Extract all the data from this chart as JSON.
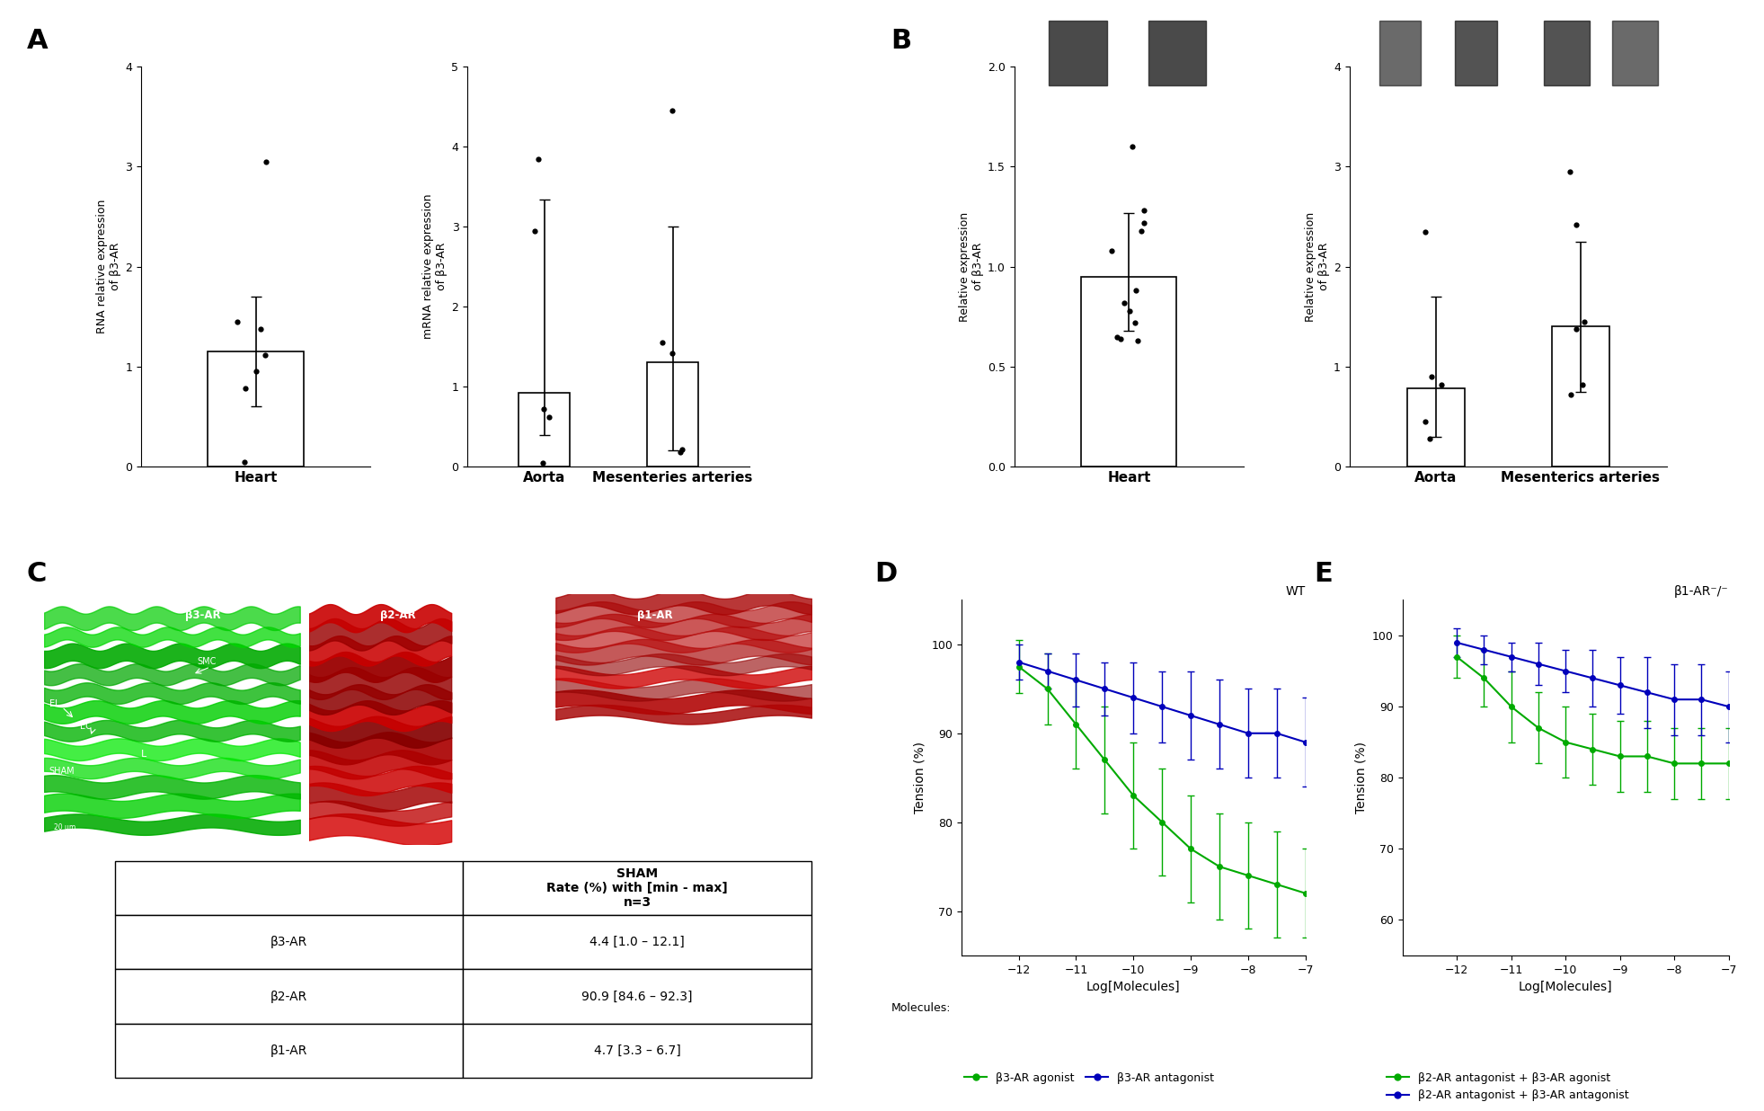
{
  "panel_A": {
    "heart_bar": 1.15,
    "heart_err": 0.55,
    "heart_points": [
      3.05,
      1.45,
      1.38,
      1.12,
      0.95,
      0.78,
      0.05
    ],
    "heart_ylim": [
      0,
      4
    ],
    "heart_yticks": [
      0,
      1,
      2,
      3,
      4
    ],
    "heart_xlabel": "Heart",
    "heart_ylabel": "RNA relative expression\nof β3-AR",
    "aorta_bar": 0.92,
    "aorta_err_low": 0.52,
    "aorta_err_high": 2.42,
    "aorta_points": [
      3.85,
      2.95,
      0.72,
      0.62,
      0.05
    ],
    "mes_bar": 1.3,
    "mes_err_low": 1.1,
    "mes_err_high": 1.7,
    "mes_points": [
      4.45,
      1.55,
      1.42,
      0.22,
      0.18
    ],
    "vascular_ylim": [
      0,
      5
    ],
    "vascular_yticks": [
      0,
      1,
      2,
      3,
      4,
      5
    ],
    "vascular_ylabel": "mRNA relative expression\nof β3-AR",
    "aorta_xlabel": "Aorta",
    "mes_xlabel": "Mesenteries arteries"
  },
  "panel_B": {
    "heart_bar": 0.95,
    "heart_err_low": 0.27,
    "heart_err_high": 0.32,
    "heart_points": [
      1.6,
      1.28,
      1.22,
      1.18,
      1.08,
      0.88,
      0.82,
      0.78,
      0.72,
      0.65,
      0.64,
      0.63
    ],
    "heart_ylim": [
      0.0,
      2.0
    ],
    "heart_yticks": [
      0.0,
      0.5,
      1.0,
      1.5,
      2.0
    ],
    "heart_xlabel": "Heart",
    "heart_ylabel": "Relative expression\nof β3-AR",
    "aorta_bar": 0.78,
    "aorta_err_low": 0.48,
    "aorta_err_high": 0.92,
    "aorta_points": [
      2.35,
      0.9,
      0.82,
      0.45,
      0.28
    ],
    "mes_bar": 1.4,
    "mes_err_low": 0.65,
    "mes_err_high": 0.85,
    "mes_points": [
      2.95,
      2.42,
      1.45,
      1.38,
      0.82,
      0.72
    ],
    "vascular_ylim": [
      0,
      4
    ],
    "vascular_yticks": [
      0,
      1,
      2,
      3,
      4
    ],
    "vascular_ylabel": "Relative expression\nof β3-AR",
    "aorta_xlabel": "Aorta",
    "mes_xlabel": "Mesenterics arteries"
  },
  "panel_C": {
    "table_data": [
      [
        "β3-AR",
        "4.4 [1.0 – 12.1]"
      ],
      [
        "β2-AR",
        "90.9 [84.6 – 92.3]"
      ],
      [
        "β1-AR",
        "4.7 [3.3 – 6.7]"
      ]
    ],
    "header": "SHAM\nRate (%) with [min - max]\nn=3"
  },
  "panel_D": {
    "title": "WT",
    "xlabel": "Log[Molecules]",
    "ylabel": "Tension (%)",
    "xlim": [
      -13,
      -7
    ],
    "ylim": [
      65,
      105
    ],
    "xticks": [
      -12,
      -11,
      -10,
      -9,
      -8,
      -7
    ],
    "yticks": [
      70,
      80,
      90,
      100
    ],
    "agonist_x": [
      -12,
      -11.5,
      -11,
      -10.5,
      -10,
      -9.5,
      -9,
      -8.5,
      -8,
      -7.5,
      -7
    ],
    "agonist_y": [
      97.5,
      95,
      91,
      87,
      83,
      80,
      77,
      75,
      74,
      73,
      72
    ],
    "agonist_err": [
      3,
      4,
      5,
      6,
      6,
      6,
      6,
      6,
      6,
      6,
      5
    ],
    "antagonist_x": [
      -12,
      -11.5,
      -11,
      -10.5,
      -10,
      -9.5,
      -9,
      -8.5,
      -8,
      -7.5,
      -7
    ],
    "antagonist_y": [
      98,
      97,
      96,
      95,
      94,
      93,
      92,
      91,
      90,
      90,
      89
    ],
    "antagonist_err": [
      2,
      2,
      3,
      3,
      4,
      4,
      5,
      5,
      5,
      5,
      5
    ],
    "agonist_color": "#00aa00",
    "antagonist_color": "#0000bb",
    "legend_agonist": "β3-AR agonist",
    "legend_antagonist": "β3-AR antagonist"
  },
  "panel_E": {
    "title": "β1-AR⁻/⁻",
    "xlabel": "Log[Molecules]",
    "ylabel": "Tension (%)",
    "xlim": [
      -13,
      -7
    ],
    "ylim": [
      55,
      105
    ],
    "xticks": [
      -12,
      -11,
      -10,
      -9,
      -8,
      -7
    ],
    "yticks": [
      60,
      70,
      80,
      90,
      100
    ],
    "agonist_x": [
      -12,
      -11.5,
      -11,
      -10.5,
      -10,
      -9.5,
      -9,
      -8.5,
      -8,
      -7.5,
      -7
    ],
    "agonist_y": [
      97,
      94,
      90,
      87,
      85,
      84,
      83,
      83,
      82,
      82,
      82
    ],
    "agonist_err": [
      3,
      4,
      5,
      5,
      5,
      5,
      5,
      5,
      5,
      5,
      5
    ],
    "antagonist_x": [
      -12,
      -11.5,
      -11,
      -10.5,
      -10,
      -9.5,
      -9,
      -8.5,
      -8,
      -7.5,
      -7
    ],
    "antagonist_y": [
      99,
      98,
      97,
      96,
      95,
      94,
      93,
      92,
      91,
      91,
      90
    ],
    "antagonist_err": [
      2,
      2,
      2,
      3,
      3,
      4,
      4,
      5,
      5,
      5,
      5
    ],
    "agonist_color": "#00aa00",
    "antagonist_color": "#0000bb",
    "legend_agonist": "β2-AR antagonist + β3-AR agonist",
    "legend_antagonist": "β2-AR antagonist + β3-AR antagonist"
  },
  "background_color": "#ffffff",
  "bar_color": "#ffffff",
  "bar_edgecolor": "#000000",
  "point_color": "#000000"
}
